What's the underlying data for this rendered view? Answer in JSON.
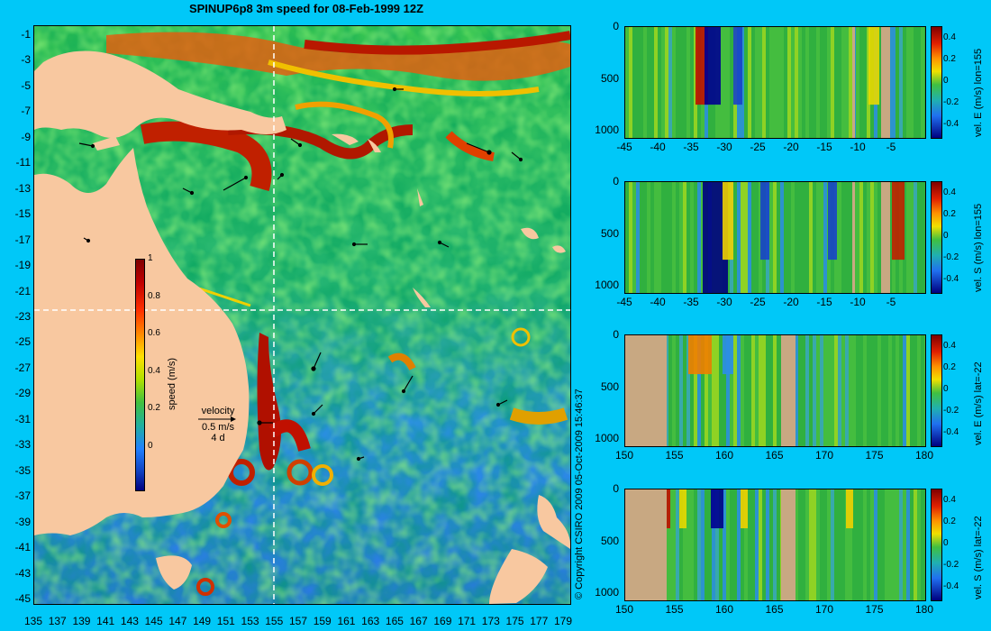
{
  "map": {
    "title": "SPINUP6p8 3m speed for 08-Feb-1999 12Z",
    "lat_labels": [
      "-1",
      "-3",
      "-5",
      "-7",
      "-9",
      "-11",
      "-13",
      "-15",
      "-17",
      "-19",
      "-21",
      "-23",
      "-25",
      "-27",
      "-29",
      "-31",
      "-33",
      "-35",
      "-37",
      "-39",
      "-41",
      "-43",
      "-45"
    ],
    "lon_labels": [
      "135",
      "137",
      "139",
      "141",
      "143",
      "145",
      "147",
      "149",
      "151",
      "153",
      "155",
      "157",
      "159",
      "161",
      "163",
      "165",
      "167",
      "169",
      "171",
      "173",
      "175",
      "177",
      "179"
    ],
    "colorbar": {
      "label": "speed (m/s)",
      "ticks": [
        "1",
        "0.8",
        "0.6",
        "0.4",
        "0.2",
        "0"
      ],
      "range": [
        -0.1,
        1
      ]
    },
    "velocity_key": {
      "title": "velocity",
      "speed": "0.5 m/s",
      "duration": "4 d"
    },
    "section_lines": {
      "lon": 155,
      "lat": -22
    },
    "copyright": "© Copyright CSIRO 2009  05-Oct-2009 15:46:37"
  },
  "sections": [
    {
      "label": "vel. E (m/s) lon=155",
      "x_ticks": [
        "-45",
        "-40",
        "-35",
        "-30",
        "-25",
        "-20",
        "-15",
        "-10",
        "-5"
      ],
      "y_ticks": [
        "0",
        "500",
        "1000"
      ],
      "cbar_ticks": [
        "0.4",
        "0.2",
        "0",
        "-0.2",
        "-0.4"
      ]
    },
    {
      "label": "vel. S (m/s) lon=155",
      "x_ticks": [
        "-45",
        "-40",
        "-35",
        "-30",
        "-25",
        "-20",
        "-15",
        "-10",
        "-5"
      ],
      "y_ticks": [
        "0",
        "500",
        "1000"
      ],
      "cbar_ticks": [
        "0.4",
        "0.2",
        "0",
        "-0.2",
        "-0.4"
      ]
    },
    {
      "label": "vel. E (m/s) lat=-22",
      "x_ticks": [
        "150",
        "155",
        "160",
        "165",
        "170",
        "175",
        "180"
      ],
      "y_ticks": [
        "0",
        "500",
        "1000"
      ],
      "cbar_ticks": [
        "0.4",
        "0.2",
        "0",
        "-0.2",
        "-0.4"
      ]
    },
    {
      "label": "vel. S (m/s) lat=-22",
      "x_ticks": [
        "150",
        "155",
        "160",
        "165",
        "170",
        "175",
        "180"
      ],
      "y_ticks": [
        "0",
        "500",
        "1000"
      ],
      "cbar_ticks": [
        "0.4",
        "0.2",
        "0",
        "-0.2",
        "-0.4"
      ]
    }
  ],
  "colors": {
    "background": "#00c8f8",
    "land": "#f8c8a0",
    "section_land": "#c8a882",
    "dashed_line": "#ffffff"
  }
}
